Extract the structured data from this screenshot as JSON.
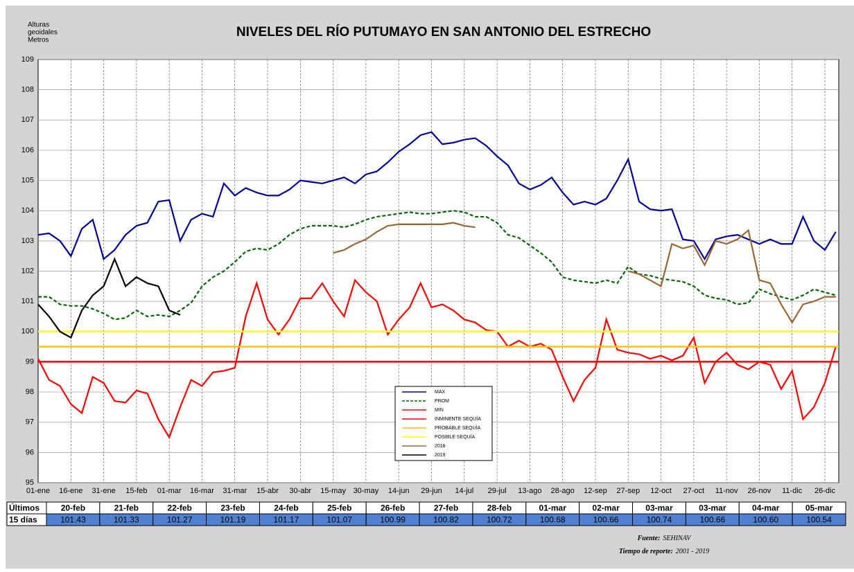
{
  "chart_data": {
    "type": "line",
    "title": "NIVELES DEL RÍO PUTUMAYO EN SAN ANTONIO DEL ESTRECHO",
    "ylabel": [
      "Alturas",
      "geoidales",
      "Metros"
    ],
    "categories": [
      "01-ene",
      null,
      null,
      "16-ene",
      null,
      null,
      "31-ene",
      null,
      null,
      "15-feb",
      null,
      null,
      "01-mar",
      null,
      null,
      "16-mar",
      null,
      null,
      "31-mar",
      null,
      null,
      "15-abr",
      null,
      null,
      "30-abr",
      null,
      null,
      "15-may",
      null,
      null,
      "30-may",
      null,
      null,
      "14-jun",
      null,
      null,
      "29-jun",
      null,
      null,
      "14-jul",
      null,
      null,
      "29-jul",
      null,
      null,
      "13-ago",
      null,
      null,
      "28-ago",
      null,
      null,
      "12-sep",
      null,
      null,
      "27-sep",
      null,
      null,
      "12-oct",
      null,
      null,
      "27-oct",
      null,
      null,
      "11-nov",
      null,
      null,
      "26-nov",
      null,
      null,
      "11-dic",
      null,
      null,
      "26-dic",
      null
    ],
    "ylim": [
      95,
      109
    ],
    "yticks": [
      95,
      96,
      97,
      98,
      99,
      100,
      101,
      102,
      103,
      104,
      105,
      106,
      107,
      108,
      109
    ],
    "grid": true,
    "series": [
      {
        "name": "MAX",
        "color": "#000099",
        "values": [
          103.2,
          103.25,
          103.0,
          102.5,
          103.4,
          103.7,
          102.4,
          102.7,
          103.2,
          103.5,
          103.6,
          104.3,
          104.35,
          103.0,
          103.7,
          103.9,
          103.8,
          104.9,
          104.5,
          104.75,
          104.6,
          104.5,
          104.5,
          104.7,
          105.0,
          104.95,
          104.9,
          105.0,
          105.1,
          104.9,
          105.2,
          105.3,
          105.6,
          105.95,
          106.2,
          106.5,
          106.6,
          106.2,
          106.25,
          106.35,
          106.4,
          106.15,
          105.8,
          105.5,
          104.9,
          104.7,
          104.85,
          105.1,
          104.6,
          104.2,
          104.3,
          104.2,
          104.4,
          105.0,
          105.7,
          104.3,
          104.05,
          104.0,
          104.05,
          103.05,
          103.0,
          102.4,
          103.05,
          103.15,
          103.2,
          103.05,
          102.9,
          103.05,
          102.9,
          102.9,
          103.8,
          103.0,
          102.7,
          103.3
        ]
      },
      {
        "name": "PROM",
        "color": "#006600",
        "dashed": true,
        "values": [
          101.15,
          101.15,
          100.9,
          100.85,
          100.85,
          100.75,
          100.6,
          100.4,
          100.45,
          100.7,
          100.5,
          100.55,
          100.5,
          100.7,
          100.95,
          101.5,
          101.8,
          102.0,
          102.3,
          102.65,
          102.75,
          102.7,
          102.9,
          103.2,
          103.4,
          103.5,
          103.5,
          103.5,
          103.45,
          103.55,
          103.7,
          103.8,
          103.85,
          103.9,
          103.95,
          103.9,
          103.9,
          103.95,
          104.0,
          103.95,
          103.8,
          103.8,
          103.6,
          103.2,
          103.1,
          102.85,
          102.6,
          102.3,
          101.8,
          101.7,
          101.65,
          101.6,
          101.7,
          101.6,
          102.15,
          101.9,
          101.85,
          101.75,
          101.7,
          101.65,
          101.5,
          101.2,
          101.1,
          101.05,
          100.9,
          100.95,
          101.4,
          101.25,
          101.15,
          101.05,
          101.2,
          101.4,
          101.3,
          101.2
        ]
      },
      {
        "name": "MIN",
        "color": "#ff0000",
        "values": [
          99.1,
          98.4,
          98.2,
          97.6,
          97.3,
          98.5,
          98.3,
          97.7,
          97.65,
          98.05,
          97.95,
          97.1,
          96.5,
          97.5,
          98.4,
          98.2,
          98.65,
          98.7,
          98.8,
          100.5,
          101.6,
          100.4,
          99.9,
          100.4,
          101.1,
          101.1,
          101.6,
          101.0,
          100.5,
          101.7,
          101.3,
          101.0,
          99.9,
          100.4,
          100.8,
          101.6,
          100.8,
          100.9,
          100.7,
          100.4,
          100.3,
          100.05,
          100.0,
          99.5,
          99.7,
          99.5,
          99.6,
          99.4,
          98.5,
          97.7,
          98.4,
          98.8,
          100.4,
          99.4,
          99.3,
          99.25,
          99.1,
          99.2,
          99.05,
          99.2,
          99.8,
          98.3,
          99.0,
          99.3,
          98.9,
          98.75,
          99.0,
          98.9,
          98.1,
          98.7,
          97.1,
          97.5,
          98.3,
          99.5
        ]
      },
      {
        "name": "INMINENTE SEQUÍA",
        "color": "#ff0000",
        "value": 99
      },
      {
        "name": "PROBABLE SEQUÍA",
        "color": "#ffc000",
        "value": 99.5
      },
      {
        "name": "POSIBLE SEQUÍA",
        "color": "#ffff00",
        "value": 100
      },
      {
        "name": "2018",
        "color": "#996633",
        "values": [
          null,
          null,
          null,
          null,
          null,
          null,
          null,
          null,
          null,
          null,
          null,
          null,
          null,
          null,
          null,
          null,
          null,
          null,
          null,
          null,
          null,
          null,
          null,
          null,
          null,
          null,
          null,
          102.6,
          102.7,
          102.9,
          103.05,
          103.3,
          103.5,
          103.55,
          103.55,
          103.55,
          103.55,
          103.55,
          103.6,
          103.5,
          103.45,
          null,
          null,
          null,
          null,
          null,
          null,
          null,
          null,
          null,
          null,
          null,
          null,
          null,
          102.0,
          101.9,
          101.7,
          101.5,
          102.9,
          102.75,
          102.85,
          102.2,
          103.0,
          102.9,
          103.05,
          103.35,
          101.7,
          101.6,
          100.9,
          100.3,
          100.9,
          101.0,
          101.15,
          101.15
        ]
      },
      {
        "name": "2019",
        "color": "#000000",
        "values": [
          100.9,
          100.5,
          100.0,
          99.8,
          100.7,
          101.2,
          101.5,
          102.4,
          101.5,
          101.8,
          101.6,
          101.5,
          100.7,
          100.55,
          null,
          null,
          null,
          null,
          null,
          null,
          null,
          null,
          null,
          null,
          null,
          null,
          null,
          null,
          null,
          null,
          null,
          null,
          null,
          null,
          null,
          null,
          null,
          null,
          null,
          null,
          null,
          null,
          null,
          null,
          null,
          null,
          null,
          null,
          null,
          null,
          null,
          null,
          null,
          null,
          null,
          null,
          null,
          null,
          null,
          null,
          null,
          null,
          null,
          null,
          null,
          null,
          null,
          null,
          null,
          null,
          null,
          null,
          null,
          null
        ]
      }
    ]
  },
  "table": {
    "rows": [
      [
        "Últimos",
        "20-feb",
        "21-feb",
        "22-feb",
        "23-feb",
        "24-feb",
        "25-feb",
        "26-feb",
        "27-feb",
        "28-feb",
        "01-mar",
        "02-mar",
        "03-mar",
        "03-mar",
        "04-mar",
        "05-mar"
      ],
      [
        "15 días",
        "101.43",
        "101.33",
        "101.27",
        "101.19",
        "101.17",
        "101.07",
        "100.99",
        "100.82",
        "100.72",
        "100.68",
        "100.66",
        "100.74",
        "100.66",
        "100.60",
        "100.54"
      ]
    ]
  },
  "footer": [
    {
      "label": "Fuente:",
      "text": "SEHINAV"
    },
    {
      "label": "Tiempo de reporte:",
      "text": "2001 -  2019"
    }
  ]
}
